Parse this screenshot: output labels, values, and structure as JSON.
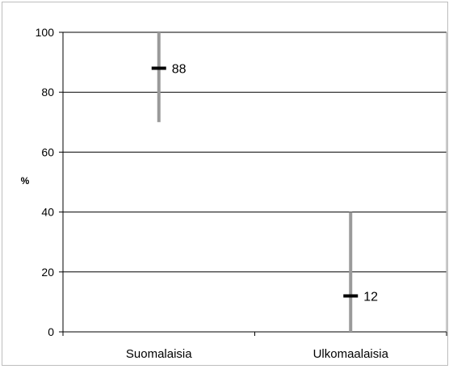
{
  "chart_data": {
    "type": "high-low-close",
    "title": "",
    "xlabel": "",
    "ylabel": "%",
    "ylim": [
      0,
      100
    ],
    "yticks": [
      0,
      20,
      40,
      60,
      80,
      100
    ],
    "grid": true,
    "categories": [
      "Suomalaisia",
      "Ulkomaalaisia"
    ],
    "series": [
      {
        "values": [
          88,
          12
        ],
        "high": [
          100,
          40
        ],
        "low": [
          70,
          0
        ]
      }
    ],
    "data_labels": [
      "88",
      "12"
    ],
    "colors": {
      "range_bar": "#9a9a9a",
      "marker": "#000000",
      "gridline": "#000000"
    }
  }
}
